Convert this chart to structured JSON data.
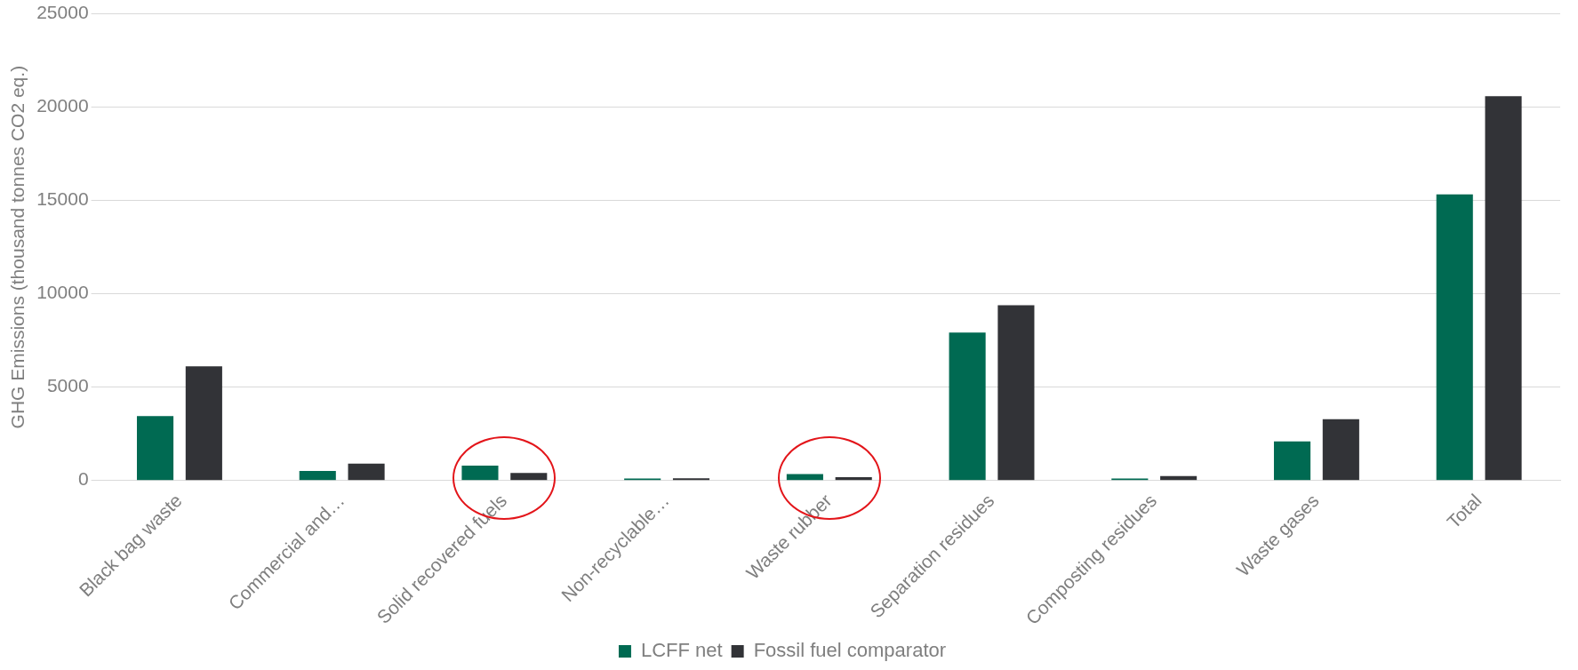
{
  "chart_data": {
    "type": "bar",
    "ylabel": "GHG Emissions (thousand tonnes CO2 eq.)",
    "categories": [
      "Black bag waste",
      "Commercial and…",
      "Solid recovered fuels",
      "Non-recyclable…",
      "Waste rubber",
      "Separation residues",
      "Composting residues",
      "Waste gases",
      "Total"
    ],
    "series": [
      {
        "name": "LCFF net",
        "color": "#006a52",
        "values": [
          3450,
          510,
          790,
          100,
          340,
          7920,
          110,
          2090,
          15330
        ]
      },
      {
        "name": "Fossil fuel comparator",
        "color": "#323337",
        "values": [
          6110,
          900,
          400,
          120,
          170,
          9390,
          230,
          3280,
          20590
        ]
      }
    ],
    "ylim": [
      0,
      25000
    ],
    "yticks": [
      0,
      5000,
      10000,
      15000,
      20000,
      25000
    ],
    "grid": "y",
    "legend": "bottom"
  }
}
